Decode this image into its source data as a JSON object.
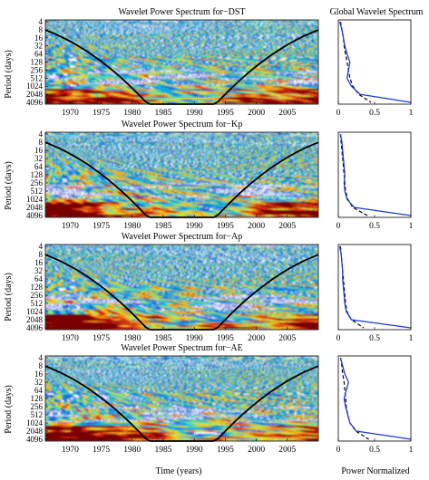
{
  "figure_labels": {
    "y_axis_label": "Period (days)",
    "x_axis_label": "Time (years)",
    "gws_x_axis_label": "Power Normalized",
    "gws_title": "Global Wavelet Spectrum"
  },
  "colors": {
    "contour_blue": "#1430c8",
    "coi_line": "#000000",
    "gws_solid": "#1f3bd6",
    "gws_dashed": "#000000"
  },
  "chart_data": [
    {
      "type": "heatmap",
      "title": "Wavelet Power Spectrum for−DST",
      "ylabel": "Period (days)",
      "xlabel": "",
      "x_ticks": [
        "1970",
        "1975",
        "1980",
        "1985",
        "1990",
        "1995",
        "2000",
        "2005"
      ],
      "x_range": [
        1966,
        2010
      ],
      "y_ticks": [
        "4",
        "8",
        "16",
        "32",
        "64",
        "128",
        "256",
        "512",
        "1024",
        "2048",
        "4096"
      ],
      "y_scale": "log2",
      "y_reversed": true,
      "cone_of_influence": true,
      "gws": {
        "title": "Global Wavelet Spectrum",
        "x_ticks": [
          "0",
          "0.5",
          "1"
        ],
        "xlim": [
          0,
          1
        ],
        "periods": [
          4,
          8,
          16,
          32,
          64,
          128,
          256,
          512,
          1024,
          2048,
          4096
        ],
        "power": [
          0.02,
          0.05,
          0.07,
          0.09,
          0.12,
          0.16,
          0.14,
          0.12,
          0.18,
          0.3,
          1.0
        ],
        "significance": [
          0.03,
          0.05,
          0.07,
          0.08,
          0.1,
          0.12,
          0.14,
          0.16,
          0.2,
          0.28,
          0.45
        ]
      }
    },
    {
      "type": "heatmap",
      "title": "Wavelet Power Spectrum for−Kp",
      "ylabel": "Period (days)",
      "xlabel": "",
      "x_ticks": [
        "1970",
        "1975",
        "1980",
        "1985",
        "1990",
        "1995",
        "2000",
        "2005"
      ],
      "x_range": [
        1966,
        2010
      ],
      "y_ticks": [
        "4",
        "8",
        "16",
        "32",
        "64",
        "128",
        "256",
        "512",
        "1024",
        "2048",
        "4096"
      ],
      "y_scale": "log2",
      "y_reversed": true,
      "cone_of_influence": true,
      "gws": {
        "title": "",
        "x_ticks": [
          "0",
          "0.5",
          "1"
        ],
        "xlim": [
          0,
          1
        ],
        "periods": [
          4,
          8,
          16,
          32,
          64,
          128,
          256,
          512,
          1024,
          2048,
          4096
        ],
        "power": [
          0.03,
          0.05,
          0.06,
          0.07,
          0.08,
          0.09,
          0.08,
          0.09,
          0.12,
          0.22,
          1.0
        ],
        "significance": [
          0.03,
          0.04,
          0.05,
          0.06,
          0.07,
          0.08,
          0.09,
          0.1,
          0.13,
          0.2,
          0.4
        ]
      }
    },
    {
      "type": "heatmap",
      "title": "Wavelet Power Spectrum for−Ap",
      "ylabel": "Period (days)",
      "xlabel": "",
      "x_ticks": [
        "1970",
        "1975",
        "1980",
        "1985",
        "1990",
        "1995",
        "2000",
        "2005"
      ],
      "x_range": [
        1966,
        2010
      ],
      "y_ticks": [
        "4",
        "8",
        "16",
        "32",
        "64",
        "128",
        "256",
        "512",
        "1024",
        "2048",
        "4096"
      ],
      "y_scale": "log2",
      "y_reversed": true,
      "cone_of_influence": true,
      "gws": {
        "title": "",
        "x_ticks": [
          "0",
          "0.5",
          "1"
        ],
        "xlim": [
          0,
          1
        ],
        "periods": [
          4,
          8,
          16,
          32,
          64,
          128,
          256,
          512,
          1024,
          2048,
          4096
        ],
        "power": [
          0.02,
          0.04,
          0.05,
          0.06,
          0.06,
          0.07,
          0.08,
          0.09,
          0.11,
          0.18,
          1.0
        ],
        "significance": [
          0.03,
          0.04,
          0.05,
          0.06,
          0.07,
          0.08,
          0.09,
          0.1,
          0.12,
          0.18,
          0.35
        ]
      }
    },
    {
      "type": "heatmap",
      "title": "Wavelet Power Spectrum for−AE",
      "ylabel": "Period (days)",
      "xlabel": "Time (years)",
      "x_ticks": [
        "1970",
        "1975",
        "1980",
        "1985",
        "1990",
        "1995",
        "2000",
        "2005"
      ],
      "x_range": [
        1966,
        2010
      ],
      "y_ticks": [
        "4",
        "8",
        "16",
        "32",
        "64",
        "128",
        "256",
        "512",
        "1024",
        "2048",
        "4096"
      ],
      "y_scale": "log2",
      "y_reversed": true,
      "cone_of_influence": true,
      "gws": {
        "title": "",
        "x_ticks": [
          "0",
          "0.5",
          "1"
        ],
        "xlim": [
          0,
          1
        ],
        "xlabel": "Power Normalized",
        "periods": [
          4,
          8,
          16,
          32,
          64,
          128,
          256,
          512,
          1024,
          2048,
          4096
        ],
        "power": [
          0.03,
          0.06,
          0.09,
          0.14,
          0.11,
          0.08,
          0.1,
          0.13,
          0.16,
          0.25,
          1.0
        ],
        "significance": [
          0.03,
          0.05,
          0.06,
          0.08,
          0.09,
          0.1,
          0.11,
          0.13,
          0.16,
          0.24,
          0.42
        ]
      }
    }
  ]
}
